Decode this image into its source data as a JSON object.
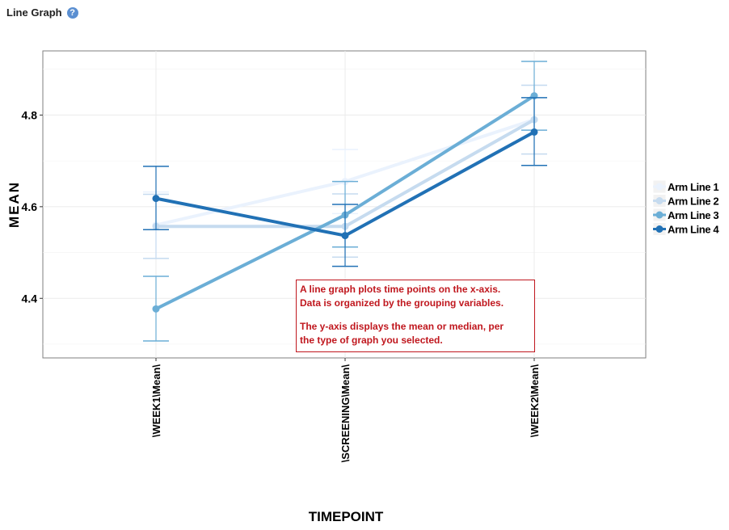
{
  "header": {
    "title": "Line Graph",
    "help_icon": "question-circle-icon"
  },
  "note": {
    "line1": "A line graph plots time points on the x-axis.",
    "line2": "Data is organized by the grouping variables.",
    "line3": "The y-axis displays the mean or median, per",
    "line4": "the type of graph you selected."
  },
  "chart_data": {
    "type": "line",
    "xlabel": "TIMEPOINT",
    "ylabel": "MEAN",
    "categories": [
      "\\WEEK1\\Mean\\",
      "\\SCREENING\\Mean\\",
      "\\WEEK2\\Mean\\"
    ],
    "ylim": [
      4.27,
      4.94
    ],
    "yticks": [
      4.4,
      4.6,
      4.8
    ],
    "grid": true,
    "legend_position": "right",
    "series": [
      {
        "name": "Arm Line 1",
        "color": "#eaf2fd",
        "values": [
          4.56,
          4.655,
          4.79
        ],
        "lower": [
          4.487,
          4.585,
          4.715
        ],
        "upper": [
          4.632,
          4.725,
          4.865
        ]
      },
      {
        "name": "Arm Line 2",
        "color": "#c6dbef",
        "values": [
          4.557,
          4.557,
          4.79
        ],
        "lower": [
          4.487,
          4.49,
          4.715
        ],
        "upper": [
          4.627,
          4.628,
          4.865
        ]
      },
      {
        "name": "Arm Line 3",
        "color": "#6baed6",
        "values": [
          4.377,
          4.582,
          4.842
        ],
        "lower": [
          4.307,
          4.512,
          4.767
        ],
        "upper": [
          4.448,
          4.655,
          4.917
        ]
      },
      {
        "name": "Arm Line 4",
        "color": "#2171b5",
        "values": [
          4.618,
          4.537,
          4.763
        ],
        "lower": [
          4.55,
          4.47,
          4.69
        ],
        "upper": [
          4.688,
          4.605,
          4.838
        ]
      }
    ]
  }
}
